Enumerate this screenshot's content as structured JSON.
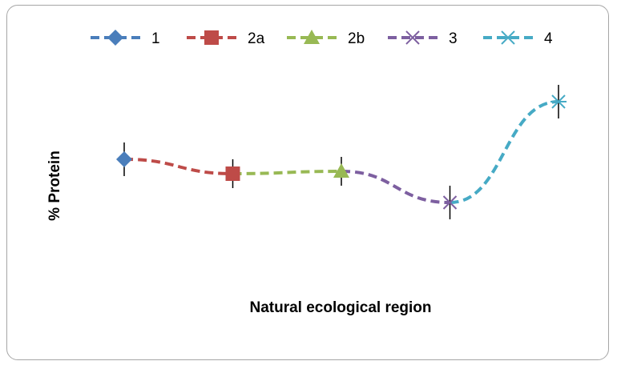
{
  "chart_data": {
    "type": "line",
    "title": "",
    "xlabel": "Natural ecological region",
    "ylabel": "% Protein",
    "categories": [
      "1",
      "2a",
      "2b",
      "3",
      "4"
    ],
    "values": [
      3.2,
      2.9,
      2.95,
      2.3,
      4.4
    ],
    "error_bars": [
      0.35,
      0.3,
      0.3,
      0.35,
      0.35
    ],
    "ylim": [
      0,
      6
    ],
    "grid": false,
    "legend_position": "top",
    "series": [
      {
        "name": "1",
        "color": "#4a7ebb",
        "marker": "diamond"
      },
      {
        "name": "2a",
        "color": "#be4b48",
        "marker": "square"
      },
      {
        "name": "2b",
        "color": "#98b954",
        "marker": "triangle"
      },
      {
        "name": "3",
        "color": "#7d5fa0",
        "marker": "x"
      },
      {
        "name": "4",
        "color": "#46aac5",
        "marker": "star"
      }
    ]
  }
}
